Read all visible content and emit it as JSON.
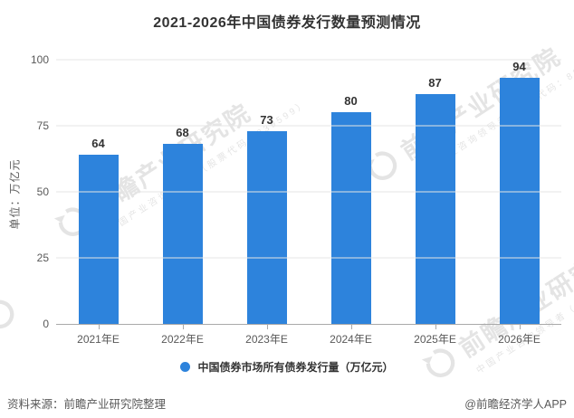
{
  "title": "2021-2026年中国债券发行数量预测情况",
  "y_axis": {
    "unit_label": "单位：万亿元",
    "ticks": [
      0,
      25,
      50,
      75,
      100
    ]
  },
  "chart_data": {
    "type": "bar",
    "categories": [
      "2021年E",
      "2022年E",
      "2023年E",
      "2024年E",
      "2025年E",
      "2026年E"
    ],
    "values": [
      64,
      68,
      73,
      80,
      87,
      94
    ],
    "title": "2021-2026年中国债券发行数量预测情况",
    "xlabel": "",
    "ylabel": "单位：万亿元",
    "ylim": [
      0,
      100
    ],
    "grid": true,
    "legend": [
      "中国债券市场所有债券发行量（万亿元）"
    ],
    "legend_position": "bottom",
    "bar_color": "#2D83DC"
  },
  "legend": {
    "label": "中国债券市场所有债券发行量（万亿元）",
    "marker_color": "#2D83DC"
  },
  "footer": {
    "source": "资料来源：前瞻产业研究院整理",
    "credit": "@前瞻经济学人APP"
  },
  "watermark": {
    "text": "前瞻产业研究院",
    "subtext": "中国产业咨询领导者（股票代码：839599）",
    "logo": "qianzhan-swirl-logo"
  },
  "colors": {
    "bar": "#2D83DC",
    "title_text": "#333333",
    "axis_text": "#595959",
    "gridline": "#e4e4e4",
    "axis_line": "#a9a9a9",
    "footer_text": "#595959",
    "watermark": "#bcbcbc"
  }
}
